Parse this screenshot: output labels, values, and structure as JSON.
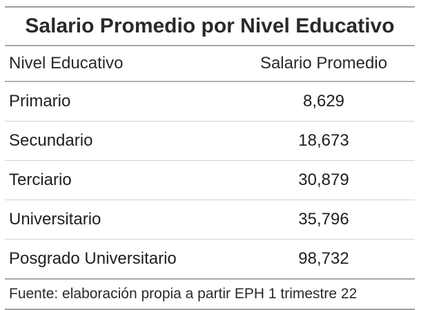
{
  "table": {
    "title": "Salario Promedio por Nivel Educativo",
    "headers": [
      "Nivel Educativo",
      "Salario Promedio"
    ],
    "rows": [
      {
        "label": "Primario",
        "value": "8,629"
      },
      {
        "label": "Secundario",
        "value": "18,673"
      },
      {
        "label": "Terciario",
        "value": "30,879"
      },
      {
        "label": "Universitario",
        "value": "35,796"
      },
      {
        "label": "Posgrado Universitario",
        "value": "98,732"
      }
    ],
    "source": "Fuente: elaboración propia a partir EPH 1 trimestre 22"
  },
  "chart_data": {
    "type": "table",
    "title": "Salario Promedio por Nivel Educativo",
    "columns": [
      "Nivel Educativo",
      "Salario Promedio"
    ],
    "categories": [
      "Primario",
      "Secundario",
      "Terciario",
      "Universitario",
      "Posgrado Universitario"
    ],
    "values": [
      8629,
      18673,
      30879,
      35796,
      98732
    ],
    "caption": "Fuente: elaboración propia a partir EPH 1 trimestre 22"
  }
}
